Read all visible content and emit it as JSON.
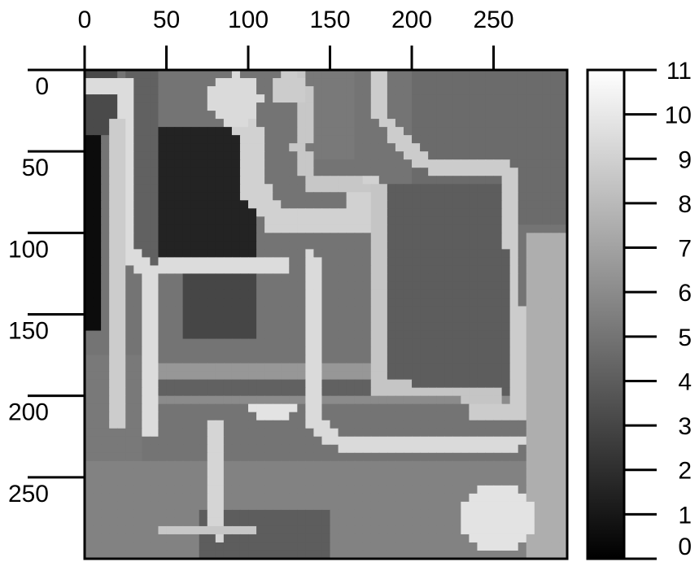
{
  "chart_data": {
    "type": "heatmap",
    "title": "",
    "xlabel": "",
    "ylabel": "",
    "colormap": "grayscale",
    "x_axis_position": "top",
    "y_axis_inverted": true,
    "xlim": [
      0,
      295
    ],
    "ylim": [
      0,
      300
    ],
    "x_ticks": [
      "0",
      "50",
      "100",
      "150",
      "200",
      "250"
    ],
    "x_tick_values": [
      0,
      50,
      100,
      150,
      200,
      250
    ],
    "y_ticks": [
      "0",
      "50",
      "100",
      "150",
      "200",
      "250"
    ],
    "y_tick_values": [
      0,
      50,
      100,
      150,
      200,
      250
    ],
    "colorbar": {
      "min": 0,
      "max": 11,
      "ticks": [
        "0",
        "1",
        "2",
        "3",
        "4",
        "5",
        "6",
        "7",
        "8",
        "9",
        "10",
        "11"
      ],
      "tick_values": [
        0,
        1,
        2,
        3,
        4,
        5,
        6,
        7,
        8,
        9,
        10,
        11
      ]
    },
    "grid_resolution": [
      59,
      60
    ],
    "base_value": 5.0,
    "features": [
      {
        "kind": "rect",
        "x": [
          0,
          8
        ],
        "y": [
          40,
          160
        ],
        "value": 0.5
      },
      {
        "kind": "rect",
        "x": [
          0,
          18
        ],
        "y": [
          0,
          40
        ],
        "value": 3.2
      },
      {
        "kind": "rect",
        "x": [
          45,
          105
        ],
        "y": [
          35,
          115
        ],
        "value": 1.5
      },
      {
        "kind": "rect",
        "x": [
          25,
          45
        ],
        "y": [
          0,
          120
        ],
        "value": 4.2
      },
      {
        "kind": "rect",
        "x": [
          60,
          105
        ],
        "y": [
          125,
          165
        ],
        "value": 3.0
      },
      {
        "kind": "rect",
        "x": [
          135,
          165
        ],
        "y": [
          0,
          55
        ],
        "value": 5.2
      },
      {
        "kind": "rect",
        "x": [
          200,
          295
        ],
        "y": [
          0,
          95
        ],
        "value": 4.6
      },
      {
        "kind": "rect",
        "x": [
          182,
          265
        ],
        "y": [
          70,
          200
        ],
        "value": 4.0
      },
      {
        "kind": "rect",
        "x": [
          0,
          295
        ],
        "y": [
          240,
          300
        ],
        "value": 5.6
      },
      {
        "kind": "rect",
        "x": [
          70,
          150
        ],
        "y": [
          270,
          300
        ],
        "value": 4.0
      },
      {
        "kind": "rect",
        "x": [
          0,
          35
        ],
        "y": [
          175,
          240
        ],
        "value": 5.2
      },
      {
        "kind": "rect",
        "x": [
          270,
          295
        ],
        "y": [
          100,
          300
        ],
        "value": 7.5
      },
      {
        "kind": "path",
        "pts": [
          [
            5,
            10
          ],
          [
            25,
            10
          ],
          [
            25,
            110
          ],
          [
            40,
            125
          ],
          [
            40,
            220
          ]
        ],
        "width": 8,
        "value": 9.5
      },
      {
        "kind": "path",
        "pts": [
          [
            20,
            30
          ],
          [
            20,
            220
          ]
        ],
        "width": 7,
        "value": 8.8
      },
      {
        "kind": "path",
        "pts": [
          [
            50,
            120
          ],
          [
            122,
            120
          ]
        ],
        "width": 8,
        "value": 9.5
      },
      {
        "kind": "path",
        "pts": [
          [
            92,
            15
          ],
          [
            102,
            45
          ],
          [
            105,
            75
          ],
          [
            118,
            92
          ],
          [
            168,
            92
          ],
          [
            170,
            78
          ],
          [
            175,
            72
          ]
        ],
        "width": 16,
        "value": 9.0
      },
      {
        "kind": "path",
        "pts": [
          [
            130,
            0
          ],
          [
            135,
            25
          ],
          [
            132,
            50
          ],
          [
            140,
            70
          ],
          [
            170,
            72
          ]
        ],
        "width": 10,
        "value": 8.6
      },
      {
        "kind": "path",
        "pts": [
          [
            180,
            0
          ],
          [
            182,
            30
          ],
          [
            205,
            55
          ],
          [
            215,
            62
          ],
          [
            258,
            62
          ],
          [
            262,
            110
          ],
          [
            265,
            210
          ],
          [
            240,
            210
          ]
        ],
        "width": 9,
        "value": 8.8
      },
      {
        "kind": "path",
        "pts": [
          [
            180,
            72
          ],
          [
            180,
            195
          ],
          [
            250,
            200
          ]
        ],
        "width": 8,
        "value": 8.5
      },
      {
        "kind": "path",
        "pts": [
          [
            138,
            115
          ],
          [
            140,
            215
          ],
          [
            155,
            228
          ],
          [
            265,
            228
          ]
        ],
        "width": 10,
        "value": 9.4
      },
      {
        "kind": "path",
        "pts": [
          [
            107,
            208
          ],
          [
            125,
            208
          ]
        ],
        "width": 10,
        "value": 9.8
      },
      {
        "kind": "path",
        "pts": [
          [
            82,
            218
          ],
          [
            82,
            285
          ]
        ],
        "width": 10,
        "value": 9.2
      },
      {
        "kind": "path",
        "pts": [
          [
            50,
            282
          ],
          [
            100,
            282
          ]
        ],
        "width": 6,
        "value": 8.6
      },
      {
        "kind": "blob",
        "cx": 92,
        "cy": 18,
        "r": 16,
        "value": 9.4
      },
      {
        "kind": "blob",
        "cx": 252,
        "cy": 275,
        "r": 22,
        "value": 9.8
      },
      {
        "kind": "blob",
        "cx": 125,
        "cy": 12,
        "r": 10,
        "value": 8.8
      }
    ],
    "stripes": [
      {
        "y": 185,
        "value": 6.5
      },
      {
        "y": 195,
        "value": 4.2
      },
      {
        "y": 203,
        "value": 6.0
      },
      {
        "y": 245,
        "value": 6.3
      },
      {
        "y": 252,
        "value": 4.4
      },
      {
        "y": 258,
        "value": 6.2
      },
      {
        "y": 265,
        "value": 4.5
      },
      {
        "y": 272,
        "value": 6.4
      }
    ]
  }
}
